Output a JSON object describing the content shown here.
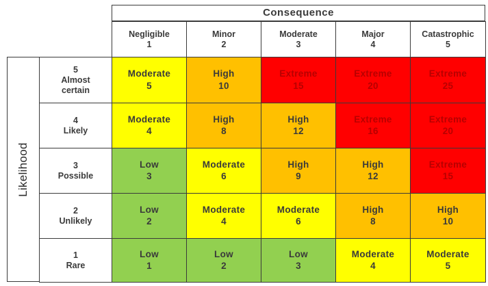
{
  "consequence_title": "Consequence",
  "likelihood_title": "Likelihood",
  "columns": [
    {
      "label": "Negligible",
      "value": "1"
    },
    {
      "label": "Minor",
      "value": "2"
    },
    {
      "label": "Moderate",
      "value": "3"
    },
    {
      "label": "Major",
      "value": "4"
    },
    {
      "label": "Catastrophic",
      "value": "5"
    }
  ],
  "rows": [
    {
      "value": "5",
      "label": "Almost\ncertain",
      "cells": [
        {
          "level": "Moderate",
          "score": "5"
        },
        {
          "level": "High",
          "score": "10"
        },
        {
          "level": "Extreme",
          "score": "15"
        },
        {
          "level": "Extreme",
          "score": "20"
        },
        {
          "level": "Extreme",
          "score": "25"
        }
      ]
    },
    {
      "value": "4",
      "label": "Likely",
      "cells": [
        {
          "level": "Moderate",
          "score": "4"
        },
        {
          "level": "High",
          "score": "8"
        },
        {
          "level": "High",
          "score": "12"
        },
        {
          "level": "Extreme",
          "score": "16"
        },
        {
          "level": "Extreme",
          "score": "20"
        }
      ]
    },
    {
      "value": "3",
      "label": "Possible",
      "cells": [
        {
          "level": "Low",
          "score": "3"
        },
        {
          "level": "Moderate",
          "score": "6"
        },
        {
          "level": "High",
          "score": "9"
        },
        {
          "level": "High",
          "score": "12"
        },
        {
          "level": "Extreme",
          "score": "15"
        }
      ]
    },
    {
      "value": "2",
      "label": "Unlikely",
      "cells": [
        {
          "level": "Low",
          "score": "2"
        },
        {
          "level": "Moderate",
          "score": "4"
        },
        {
          "level": "Moderate",
          "score": "6"
        },
        {
          "level": "High",
          "score": "8"
        },
        {
          "level": "High",
          "score": "10"
        }
      ]
    },
    {
      "value": "1",
      "label": "Rare",
      "cells": [
        {
          "level": "Low",
          "score": "1"
        },
        {
          "level": "Low",
          "score": "2"
        },
        {
          "level": "Low",
          "score": "3"
        },
        {
          "level": "Moderate",
          "score": "4"
        },
        {
          "level": "Moderate",
          "score": "5"
        }
      ]
    }
  ],
  "level_colors": {
    "Low": "#92d050",
    "Moderate": "#ffff00",
    "High": "#ffc000",
    "Extreme": "#ff0000"
  }
}
